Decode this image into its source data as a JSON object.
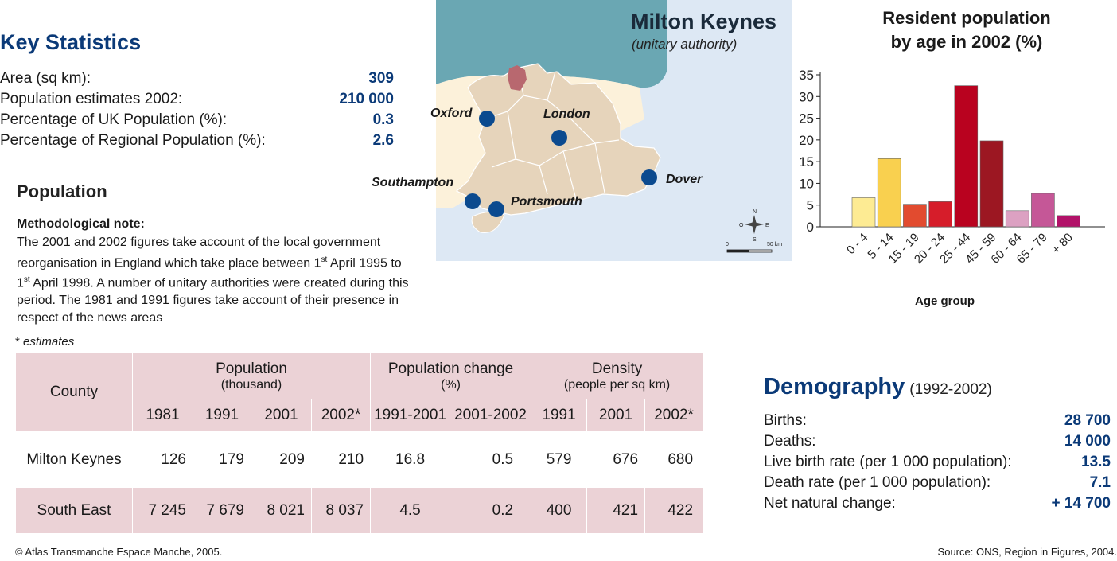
{
  "key_statistics": {
    "title": "Key Statistics",
    "rows": [
      {
        "label": "Area (sq km):",
        "value": "309"
      },
      {
        "label": "Population estimates 2002:",
        "value": "210 000"
      },
      {
        "label": "Percentage of UK Population (%):",
        "value": "0.3"
      },
      {
        "label": "Percentage of Regional Population (%):",
        "value": "2.6"
      }
    ]
  },
  "population": {
    "title": "Population",
    "note_title": "Methodological note:",
    "note_p1": "The 2001 and 2002 figures take account of the local government reorganisation in England which take place between 1",
    "note_sup1": "st",
    "note_p2": " April 1995 to 1",
    "note_sup2": "st",
    "note_p3": " April 1998. A number of unitary authorities were created during this period. The 1981 and 1991 figures take account of their presence in respect of the news areas",
    "estimates_star": "* ",
    "estimates_note": "estimates"
  },
  "table": {
    "county_header": "County",
    "group_population": "Population",
    "group_population_sub": "(thousand)",
    "group_change": "Population change",
    "group_change_sub": "(%)",
    "group_density": "Density",
    "group_density_sub": "(people per sq km)",
    "subheaders": [
      "1981",
      "1991",
      "2001",
      "2002*",
      "1991-2001",
      "2001-2002",
      "1991",
      "2001",
      "2002*"
    ],
    "rows": [
      {
        "county": "Milton Keynes",
        "cells": [
          "126",
          "179",
          "209",
          "210",
          "16.8",
          "0.5",
          "579",
          "676",
          "680"
        ]
      },
      {
        "county": "South East",
        "cells": [
          "7 245",
          "7 679",
          "8 021",
          "8 037",
          "4.5",
          "0.2",
          "400",
          "421",
          "422"
        ]
      }
    ]
  },
  "map": {
    "title": "Milton Keynes",
    "subtitle": "(unitary authority)",
    "cities": [
      "Oxford",
      "London",
      "Southampton",
      "Portsmouth",
      "Dover"
    ],
    "scale_start": "0",
    "scale_end": "50 km",
    "compass": {
      "n": "N",
      "s": "S",
      "e": "E",
      "w": "O"
    },
    "colors": {
      "sea_north": "#6aa7b3",
      "sea": "#dde8f4",
      "south_east": "#e6d4bb",
      "neighbours": "#fcf1da",
      "highlight": "#b8686f",
      "city_dot": "#0b4a8f"
    }
  },
  "chart": {
    "title_line1": "Resident population",
    "title_line2": "by age in 2002 (%)",
    "xlabel": "Age group"
  },
  "chart_data": {
    "type": "bar",
    "title": "Resident population by age in 2002 (%)",
    "xlabel": "Age group",
    "ylabel": "",
    "categories": [
      "0 - 4",
      "5 - 14",
      "15 - 19",
      "20 - 24",
      "25 - 44",
      "45 - 59",
      "60 - 64",
      "65 - 79",
      "+ 80"
    ],
    "values": [
      6.7,
      15.7,
      5.2,
      5.8,
      32.5,
      19.8,
      3.7,
      7.7,
      2.6
    ],
    "colors": [
      "#fdeb93",
      "#f9d04f",
      "#e24b2f",
      "#d61d2a",
      "#b9021f",
      "#9c1722",
      "#dca1c2",
      "#c55797",
      "#b21269"
    ],
    "ylim": [
      0,
      35
    ],
    "yticks": [
      0,
      5,
      10,
      15,
      20,
      25,
      30,
      35
    ],
    "grid": false,
    "legend": "none"
  },
  "demography": {
    "title": "Demography",
    "range": "(1992-2002)",
    "rows": [
      {
        "label": "Births:",
        "value": "28 700"
      },
      {
        "label": "Deaths:",
        "value": "14 000"
      },
      {
        "label": "Live birth rate (per 1 000 population):",
        "value": "13.5"
      },
      {
        "label": "Death rate (per 1 000 population):",
        "value": "7.1"
      },
      {
        "label": "Net natural change:",
        "value": "+ 14 700"
      }
    ]
  },
  "footer": {
    "copyright": "© Atlas Transmanche Espace Manche, 2005.",
    "source": "Source: ONS, Region in Figures, 2004."
  }
}
